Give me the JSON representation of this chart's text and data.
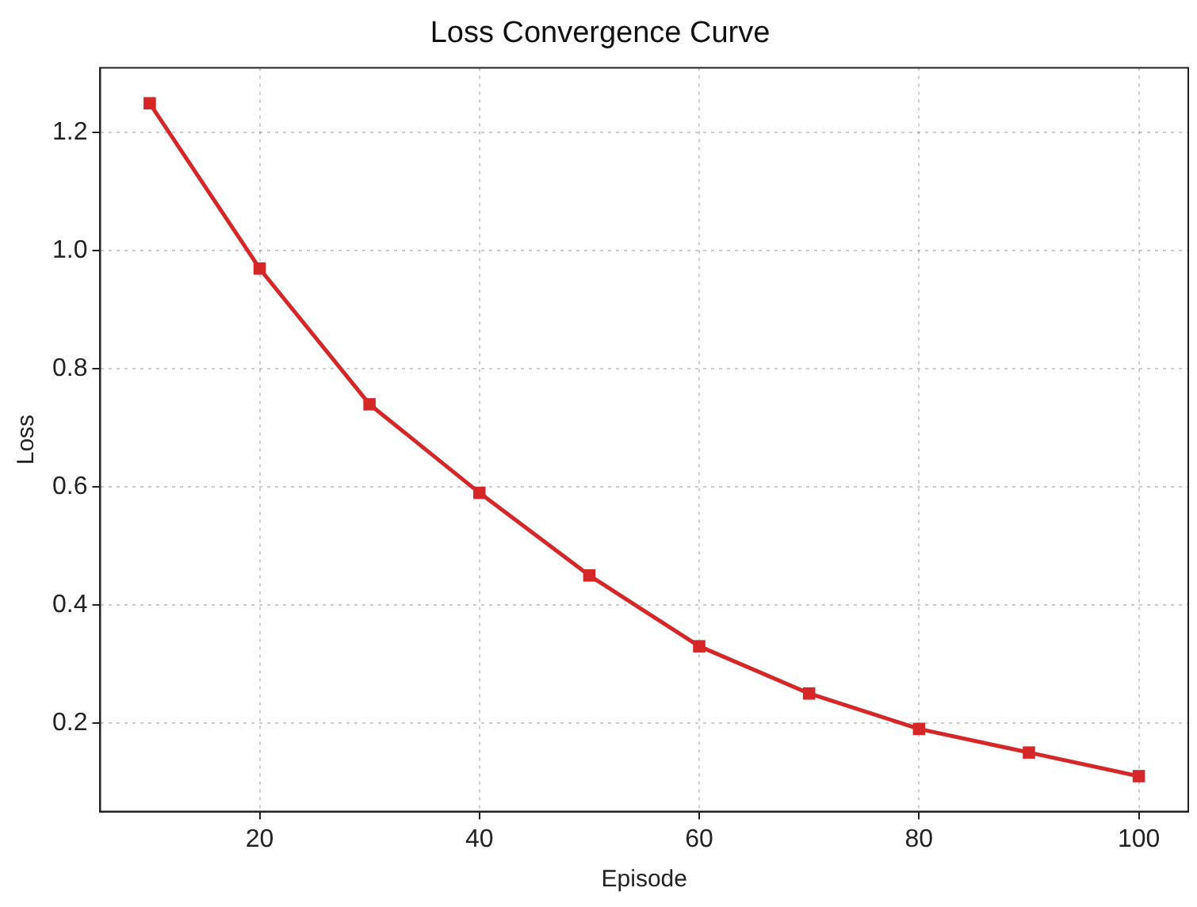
{
  "chart_data": {
    "type": "line",
    "title": "Loss Convergence Curve",
    "xlabel": "Episode",
    "ylabel": "Loss",
    "x": [
      10,
      20,
      30,
      40,
      50,
      60,
      70,
      80,
      90,
      100
    ],
    "series": [
      {
        "color": "#d62728",
        "values": [
          1.25,
          0.97,
          0.74,
          0.59,
          0.45,
          0.33,
          0.25,
          0.19,
          0.15,
          0.11
        ]
      }
    ],
    "xlim": [
      5.5,
      104.5
    ],
    "ylim": [
      0.05,
      1.31
    ],
    "xticks": [
      20,
      40,
      60,
      80,
      100
    ],
    "yticks": [
      {
        "value": 0.2,
        "label": "0.2"
      },
      {
        "value": 0.4,
        "label": "0.4"
      },
      {
        "value": 0.6,
        "label": "0.6"
      },
      {
        "value": 0.8,
        "label": "0.8"
      },
      {
        "value": 1.0,
        "label": "1.0"
      },
      {
        "value": 1.2,
        "label": "1.2"
      }
    ],
    "grid": true,
    "legend": false,
    "marker": "square",
    "line_style": "solid"
  }
}
